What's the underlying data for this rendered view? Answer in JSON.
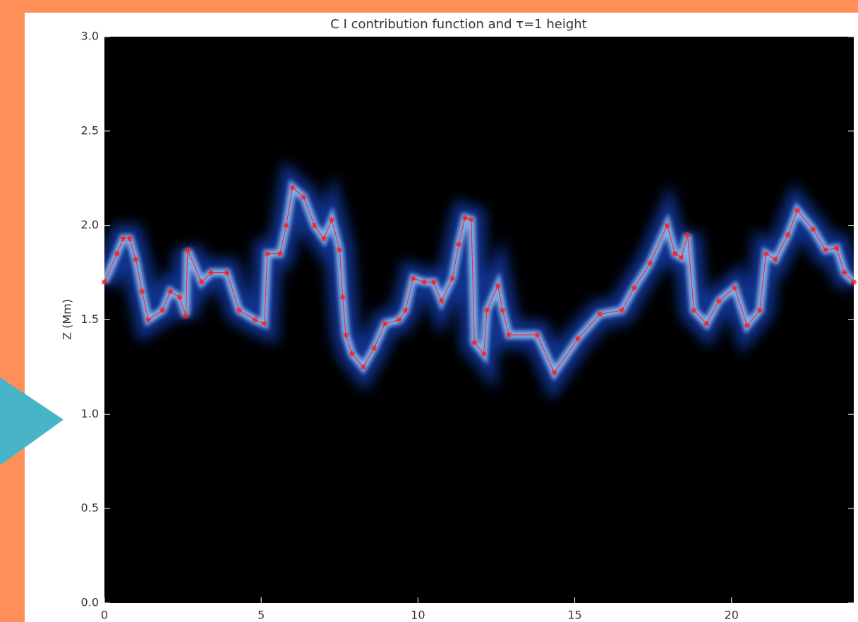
{
  "chart_data": {
    "type": "line",
    "title": "C I contribution function and τ=1 height",
    "ylabel": "Z (Mm)",
    "x": [
      0,
      0.4,
      0.6,
      0.8,
      1.0,
      1.2,
      1.4,
      1.85,
      2.1,
      2.4,
      2.6,
      2.65,
      3.1,
      3.4,
      3.9,
      4.3,
      4.8,
      5.1,
      5.2,
      5.6,
      5.8,
      6.0,
      6.35,
      6.7,
      7.0,
      7.25,
      7.5,
      7.6,
      7.7,
      7.9,
      8.25,
      8.6,
      8.95,
      9.4,
      9.6,
      9.85,
      10.2,
      10.5,
      10.75,
      11.1,
      11.3,
      11.5,
      11.7,
      11.8,
      12.1,
      12.2,
      12.55,
      12.7,
      12.9,
      13.8,
      14.35,
      15.1,
      15.8,
      16.5,
      16.9,
      17.4,
      17.95,
      18.2,
      18.4,
      18.6,
      18.8,
      19.2,
      19.6,
      20.1,
      20.5,
      20.9,
      21.1,
      21.4,
      21.8,
      22.1,
      22.6,
      23.0,
      23.35,
      23.6,
      23.9
    ],
    "series": [
      {
        "color": "#ff1a1a",
        "values": [
          1.7,
          1.85,
          1.93,
          1.93,
          1.82,
          1.65,
          1.5,
          1.55,
          1.65,
          1.62,
          1.52,
          1.87,
          1.7,
          1.75,
          1.75,
          1.55,
          1.5,
          1.48,
          1.85,
          1.85,
          2.0,
          2.2,
          2.15,
          2.0,
          1.93,
          2.03,
          1.87,
          1.62,
          1.42,
          1.32,
          1.25,
          1.35,
          1.48,
          1.5,
          1.55,
          1.72,
          1.7,
          1.7,
          1.6,
          1.72,
          1.9,
          2.04,
          2.03,
          1.38,
          1.32,
          1.55,
          1.68,
          1.55,
          1.42,
          1.42,
          1.22,
          1.4,
          1.53,
          1.55,
          1.67,
          1.8,
          2.0,
          1.85,
          1.83,
          1.95,
          1.55,
          1.48,
          1.6,
          1.67,
          1.47,
          1.55,
          1.85,
          1.82,
          1.95,
          2.08,
          1.98,
          1.87,
          1.88,
          1.75,
          1.7
        ]
      }
    ],
    "xlim": [
      0,
      23.9
    ],
    "xticks": [
      0,
      5,
      10,
      15,
      20
    ],
    "ylim": [
      0,
      3
    ],
    "yticks": [
      {
        "value": 0,
        "label": "0.0"
      },
      {
        "value": 0.5,
        "label": "0.5"
      },
      {
        "value": 1,
        "label": "1.0"
      },
      {
        "value": 1.5,
        "label": "1.5"
      },
      {
        "value": 2,
        "label": "2.0"
      },
      {
        "value": 2.5,
        "label": "2.5"
      },
      {
        "value": 3,
        "label": "3.0"
      }
    ]
  }
}
